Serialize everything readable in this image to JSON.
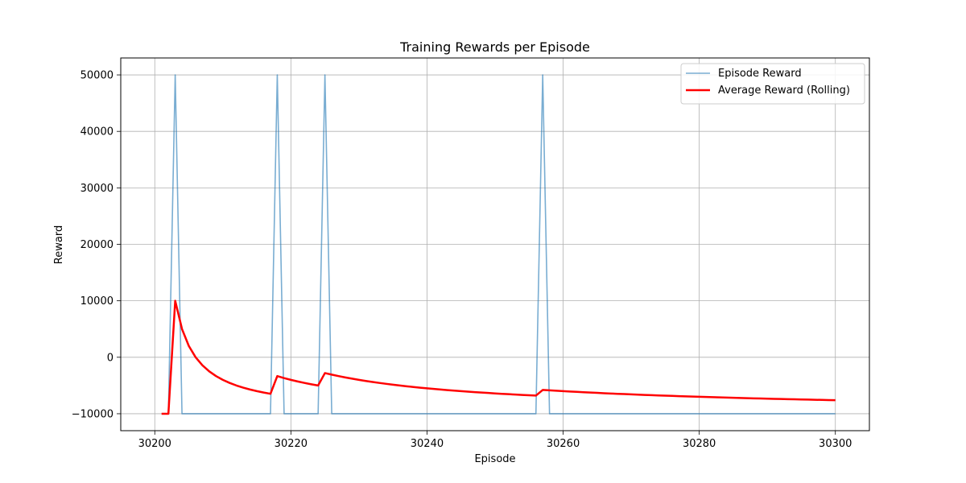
{
  "chart_data": {
    "type": "line",
    "title": "Training Rewards per Episode",
    "xlabel": "Episode",
    "ylabel": "Reward",
    "xlim": [
      30195,
      30305
    ],
    "ylim": [
      -13000,
      53000
    ],
    "xticks": [
      30200,
      30220,
      30240,
      30260,
      30280,
      30300
    ],
    "yticks": [
      -10000,
      0,
      10000,
      20000,
      30000,
      40000,
      50000
    ],
    "grid": true,
    "legend_position": "top-right",
    "episode_start": 30201,
    "episode_end": 30300,
    "high_reward_episodes": [
      30203,
      30218,
      30225,
      30257
    ],
    "high_reward_value": 50000,
    "base_reward_value": -10000,
    "series": [
      {
        "name": "Episode Reward",
        "color": "#1f77b4",
        "opacity": 0.6
      },
      {
        "name": "Average Reward (Rolling)",
        "color": "#ff0000"
      }
    ]
  }
}
